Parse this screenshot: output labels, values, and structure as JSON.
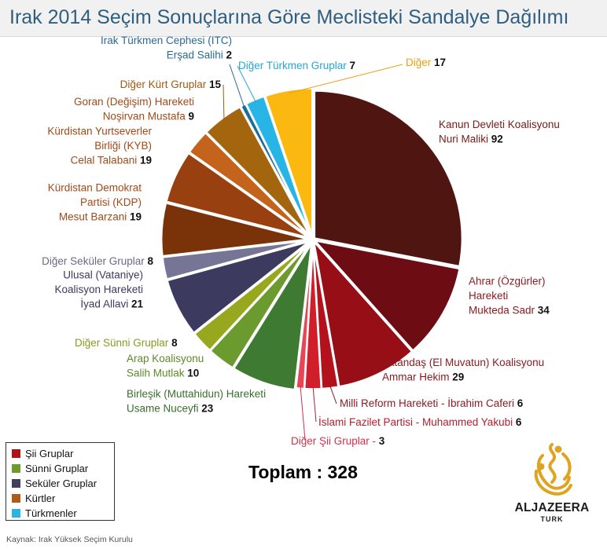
{
  "title": "Irak 2014 Seçim Sonuçlarına Göre Meclisteki Sandalye Dağılımı",
  "total_label": "Toplam : 328",
  "source": "Kaynak: Irak Yüksek Seçim Kurulu",
  "logo": {
    "name": "ALJAZEERA",
    "sub": "TURK"
  },
  "legend": [
    {
      "label": "Şii Gruplar",
      "color": "#b0111b"
    },
    {
      "label": "Sünni Gruplar",
      "color": "#6e9a2b"
    },
    {
      "label": "Seküler Gruplar",
      "color": "#43405f"
    },
    {
      "label": "Kürtler",
      "color": "#b05a1a"
    },
    {
      "label": "Türkmenler",
      "color": "#27b5e6"
    }
  ],
  "chart_data": {
    "type": "pie",
    "total": 328,
    "slices": [
      {
        "lines": [
          "Kanun Devleti Koalisyonu",
          "Nuri Maliki"
        ],
        "value": 92,
        "group": "Şii",
        "color": "#4f1510",
        "label_color": "#7a1a14"
      },
      {
        "lines": [
          "Ahrar (Özgürler)",
          "Hareketi",
          "Mukteda Sadr"
        ],
        "value": 34,
        "group": "Şii",
        "color": "#6e0c14",
        "label_color": "#8a1a1f"
      },
      {
        "lines": [
          "Vatandaş (El Muvatun) Koalisyonu",
          "Ammar Hekim"
        ],
        "value": 29,
        "group": "Şii",
        "color": "#970e16",
        "label_color": "#8a1a1f"
      },
      {
        "lines": [
          "Milli Reform Hareketi - İbrahim Caferi"
        ],
        "value": 6,
        "group": "Şii",
        "color": "#b3111c",
        "label_color": "#8a1a1f"
      },
      {
        "lines": [
          "İslami Fazilet Partisi - Muhammed Yakubi"
        ],
        "value": 6,
        "group": "Şii",
        "color": "#d01f2a",
        "label_color": "#b02030"
      },
      {
        "lines": [
          "Diğer Şii Gruplar -"
        ],
        "value": 3,
        "group": "Şii",
        "color": "#e84556",
        "label_color": "#d4304a"
      },
      {
        "lines": [
          "Birleşik (Muttahidun) Hareketi",
          "Usame Nuceyfi"
        ],
        "value": 23,
        "group": "Sünni",
        "color": "#3e7a32",
        "label_color": "#3a6e2e"
      },
      {
        "lines": [
          "Arap Koalisyonu",
          "Salih Mutlak"
        ],
        "value": 10,
        "group": "Sünni",
        "color": "#6b9a2e",
        "label_color": "#5b8a2a"
      },
      {
        "lines": [
          "Diğer Sünni Gruplar"
        ],
        "value": 8,
        "group": "Sünni",
        "color": "#98a81e",
        "label_color": "#8a9a1e"
      },
      {
        "lines": [
          "Ulusal (Vataniye)",
          "Koalisyon Hareketi",
          "İyad Allavi"
        ],
        "value": 21,
        "group": "Seküler",
        "color": "#3c3a5e",
        "label_color": "#3c3a5e"
      },
      {
        "lines": [
          "Diğer Seküler Gruplar"
        ],
        "value": 8,
        "group": "Seküler",
        "color": "#777596",
        "label_color": "#6a6888"
      },
      {
        "lines": [
          "Kürdistan Demokrat",
          "Partisi (KDP)",
          "Mesut Barzani"
        ],
        "value": 19,
        "group": "Kürt",
        "color": "#7a3208",
        "label_color": "#a04a1a"
      },
      {
        "lines": [
          "Kürdistan Yurtseverler",
          "Birliği (KYB)",
          "Celal Talabani"
        ],
        "value": 19,
        "group": "Kürt",
        "color": "#98400f",
        "label_color": "#a04a1a"
      },
      {
        "lines": [
          "Goran (Değişim) Hareketi",
          "Noşirvan Mustafa"
        ],
        "value": 9,
        "group": "Kürt",
        "color": "#c4641c",
        "label_color": "#a04a1a"
      },
      {
        "lines": [
          "Diğer Kürt Gruplar"
        ],
        "value": 15,
        "group": "Kürt",
        "color": "#a4650f",
        "label_color": "#a05a12"
      },
      {
        "lines": [
          "Irak Türkmen Cephesi (ITC)",
          "Erşad Salihi"
        ],
        "value": 2,
        "group": "Türkmen",
        "color": "#1b6e9a",
        "label_color": "#2a6a96"
      },
      {
        "lines": [
          "Diğer Türkmen Gruplar"
        ],
        "value": 7,
        "group": "Türkmen",
        "color": "#27b5e6",
        "label_color": "#27a6d6"
      },
      {
        "lines": [
          "Diğer"
        ],
        "value": 17,
        "group": "Diğer",
        "color": "#fbb810",
        "label_color": "#e8a010"
      }
    ]
  }
}
